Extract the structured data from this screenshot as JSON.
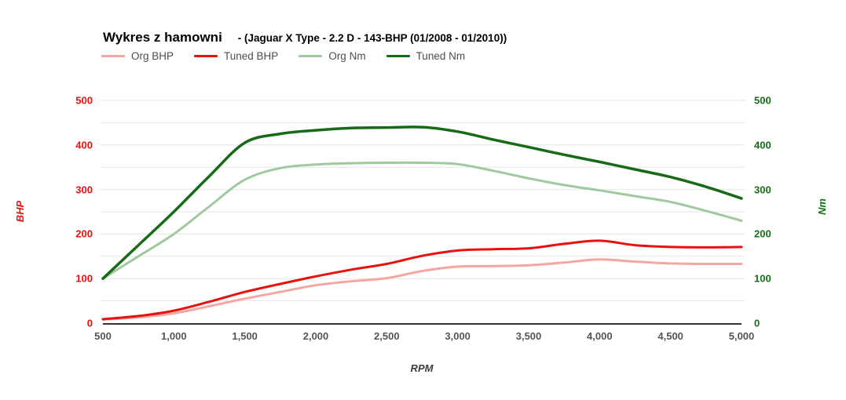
{
  "header": {
    "title": "Wykres z hamowni",
    "subtitle": "- (Jaguar X Type - 2.2 D - 143-BHP (01/2008 - 01/2010))"
  },
  "legend": {
    "position": "top",
    "items": [
      {
        "label": "Org BHP",
        "color": "#f4a7a2"
      },
      {
        "label": "Tuned BHP",
        "color": "#e8110e"
      },
      {
        "label": "Org Nm",
        "color": "#a0c9a0"
      },
      {
        "label": "Tuned Nm",
        "color": "#176b17"
      }
    ]
  },
  "axes": {
    "left": {
      "title": "BHP",
      "color": "#e8110e",
      "tick_labels": [
        "0",
        "100",
        "200",
        "300",
        "400",
        "500"
      ]
    },
    "right": {
      "title": "Nm",
      "color": "#156f15",
      "tick_labels": [
        "0",
        "100",
        "200",
        "300",
        "400",
        "500"
      ]
    },
    "x": {
      "title": "RPM",
      "color": "#3c3c3c",
      "tick_labels": [
        "500",
        "1,000",
        "1,500",
        "2,000",
        "2,500",
        "3,000",
        "3,500",
        "4,000",
        "4,500",
        "5,000"
      ]
    }
  },
  "chart_data": {
    "type": "line",
    "title": "Wykres z hamowni - (Jaguar X Type - 2.2 D - 143-BHP (01/2008 - 01/2010))",
    "xlabel": "RPM",
    "ylabel_left": "BHP",
    "ylabel_right": "Nm",
    "xlim": [
      500,
      5000
    ],
    "ylim_left": [
      0,
      500
    ],
    "ylim_right": [
      0,
      500
    ],
    "xticks": [
      500,
      1000,
      1500,
      2000,
      2500,
      3000,
      3500,
      4000,
      4500,
      5000
    ],
    "yticks": [
      0,
      100,
      200,
      300,
      400,
      500
    ],
    "grid": "horizontal every 50 units",
    "legend_position": "top",
    "x": [
      500,
      750,
      1000,
      1250,
      1500,
      1750,
      2000,
      2250,
      2500,
      2750,
      3000,
      3250,
      3500,
      3750,
      4000,
      4250,
      4500,
      4750,
      5000
    ],
    "series": [
      {
        "name": "Org BHP",
        "axis": "left",
        "color": "#f4a7a2",
        "stroke_width": 3,
        "values": [
          8,
          13,
          22,
          38,
          55,
          70,
          85,
          94,
          101,
          117,
          127,
          128,
          130,
          136,
          143,
          138,
          134,
          133,
          133
        ]
      },
      {
        "name": "Tuned BHP",
        "axis": "left",
        "color": "#e8110e",
        "stroke_width": 3,
        "values": [
          9,
          16,
          28,
          48,
          70,
          88,
          105,
          120,
          133,
          151,
          163,
          166,
          168,
          178,
          185,
          175,
          171,
          170,
          171
        ]
      },
      {
        "name": "Org Nm",
        "axis": "right",
        "color": "#a0c9a0",
        "stroke_width": 3,
        "values": [
          100,
          150,
          200,
          262,
          322,
          348,
          356,
          359,
          360,
          360,
          357,
          342,
          325,
          310,
          298,
          285,
          272,
          252,
          230
        ]
      },
      {
        "name": "Tuned Nm",
        "axis": "right",
        "color": "#176b17",
        "stroke_width": 3.5,
        "values": [
          100,
          175,
          250,
          330,
          405,
          425,
          433,
          438,
          439,
          440,
          430,
          412,
          395,
          378,
          362,
          345,
          328,
          306,
          280
        ]
      }
    ]
  },
  "colors": {
    "gridline": "#e6e6e6",
    "axis_line": "#333333",
    "x_tick_text": "#555555",
    "legend_text": "#4d4d4d",
    "background": "#ffffff"
  }
}
